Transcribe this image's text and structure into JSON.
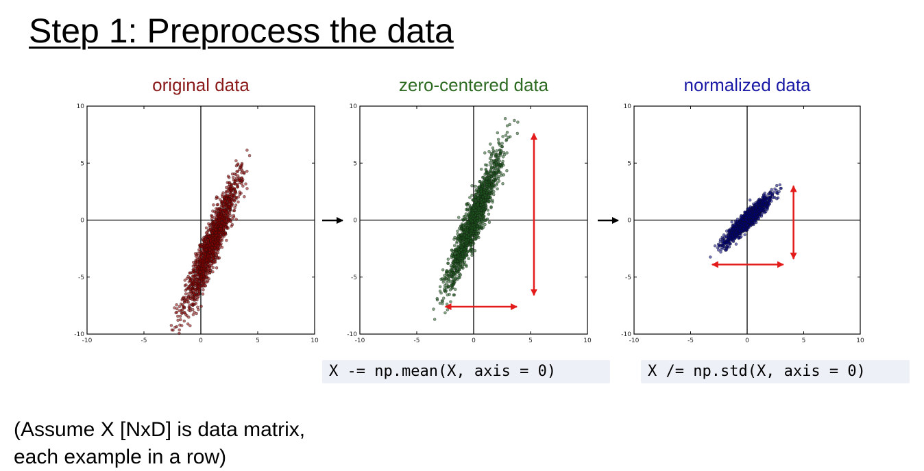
{
  "slide": {
    "title": "Step 1: Preprocess the data",
    "note_line1": "(Assume X [NxD] is data matrix,",
    "note_line2": "each example in a row)"
  },
  "code": {
    "mean_line": "X -= np.mean(X, axis = 0)",
    "std_line": "X /= np.std(X, axis = 0)"
  },
  "icons": [
    "arrow-right-icon",
    "arrow-right-icon"
  ],
  "chart_data": [
    {
      "type": "scatter",
      "title": "original data",
      "title_color": "#8b1a1a",
      "point_color": "#8b0000",
      "xlim": [
        -10,
        10
      ],
      "ylim": [
        -10,
        10
      ],
      "xticks": [
        "-10",
        "-5",
        "0",
        "5",
        "10"
      ],
      "yticks": [
        "-10",
        "-5",
        "0",
        "5",
        "10"
      ],
      "distribution": {
        "mean_x": 1.0,
        "mean_y": -2.0,
        "std_x": 1.2,
        "std_y": 2.9,
        "correlation": 0.93,
        "n_points": 1500
      },
      "arrows": []
    },
    {
      "type": "scatter",
      "title": "zero-centered data",
      "title_color": "#2e6b22",
      "point_color": "#1e5a1e",
      "xlim": [
        -10,
        10
      ],
      "ylim": [
        -10,
        10
      ],
      "xticks": [
        "-10",
        "-5",
        "0",
        "5",
        "10"
      ],
      "yticks": [
        "-10",
        "-5",
        "0",
        "5",
        "10"
      ],
      "distribution": {
        "mean_x": 0.0,
        "mean_y": 0.0,
        "std_x": 1.2,
        "std_y": 2.9,
        "correlation": 0.93,
        "n_points": 1500
      },
      "arrows": [
        {
          "from": [
            5.3,
            7.6
          ],
          "to": [
            5.3,
            -6.6
          ]
        },
        {
          "from": [
            -2.5,
            -7.6
          ],
          "to": [
            3.8,
            -7.6
          ]
        }
      ]
    },
    {
      "type": "scatter",
      "title": "normalized data",
      "title_color": "#1a1aa6",
      "point_color": "#000080",
      "xlim": [
        -10,
        10
      ],
      "ylim": [
        -10,
        10
      ],
      "xticks": [
        "-10",
        "-5",
        "0",
        "5",
        "10"
      ],
      "yticks": [
        "-10",
        "-5",
        "0",
        "5",
        "10"
      ],
      "distribution": {
        "mean_x": 0.0,
        "mean_y": 0.0,
        "std_x": 1.0,
        "std_y": 1.0,
        "correlation": 0.93,
        "n_points": 1500
      },
      "arrows": [
        {
          "from": [
            4.1,
            3.0
          ],
          "to": [
            4.1,
            -3.4
          ]
        },
        {
          "from": [
            -3.1,
            -3.9
          ],
          "to": [
            3.2,
            -3.9
          ]
        }
      ]
    }
  ]
}
